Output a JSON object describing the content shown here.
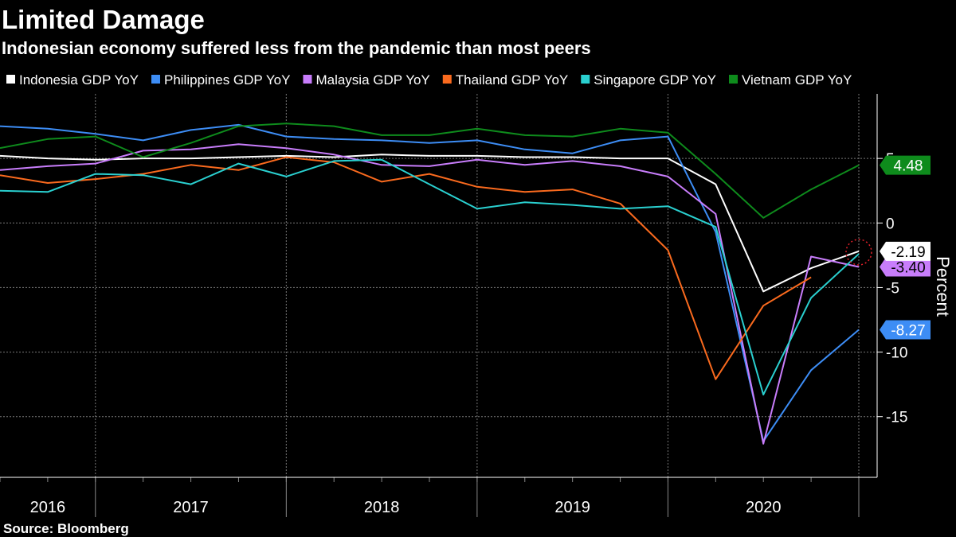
{
  "chart_data": {
    "type": "line",
    "title": "Limited Damage",
    "subtitle": "Indonesian economy suffered less from the pandemic than most peers",
    "y_label": "Percent",
    "source": "Source: Bloomberg",
    "year_labels": [
      "2016",
      "2017",
      "2018",
      "2019",
      "2020"
    ],
    "ylim": [
      -19.7,
      10
    ],
    "yticks": [
      -15,
      -10,
      -5,
      0,
      5
    ],
    "grid": true,
    "series": [
      {
        "name": "Indonesia GDP YoY",
        "color": "#ffffff",
        "values": [
          5.2,
          5.0,
          4.9,
          5.0,
          5.0,
          5.1,
          5.2,
          5.1,
          5.3,
          5.2,
          5.2,
          5.1,
          5.1,
          5.0,
          5.0,
          3.0,
          -5.3,
          -3.5,
          -2.19
        ],
        "value_labels": [
          null,
          null,
          null,
          null,
          null,
          null,
          null,
          null,
          null,
          null,
          null,
          null,
          null,
          null,
          null,
          null,
          null,
          null,
          "-2.19"
        ]
      },
      {
        "name": "Philippines GDP YoY",
        "color": "#3d8df5",
        "values": [
          7.5,
          7.3,
          6.9,
          6.4,
          7.2,
          7.6,
          6.7,
          6.5,
          6.4,
          6.2,
          6.4,
          5.7,
          5.4,
          6.4,
          6.7,
          -0.7,
          -16.9,
          -11.4,
          -8.27
        ],
        "value_labels": [
          null,
          null,
          null,
          null,
          null,
          null,
          null,
          null,
          null,
          null,
          null,
          null,
          null,
          null,
          null,
          null,
          null,
          null,
          "-8.27"
        ]
      },
      {
        "name": "Malaysia GDP YoY",
        "color": "#c87dfb",
        "values": [
          4.1,
          4.4,
          4.6,
          5.6,
          5.7,
          6.1,
          5.8,
          5.3,
          4.5,
          4.4,
          4.9,
          4.5,
          4.8,
          4.4,
          3.6,
          0.7,
          -17.1,
          -2.6,
          -3.4
        ],
        "value_labels": [
          null,
          null,
          null,
          null,
          null,
          null,
          null,
          null,
          null,
          null,
          null,
          null,
          null,
          null,
          null,
          null,
          null,
          null,
          "-3.40"
        ]
      },
      {
        "name": "Thailand GDP YoY",
        "color": "#fa6a1e",
        "values": [
          3.7,
          3.1,
          3.4,
          3.8,
          4.5,
          4.1,
          5.1,
          4.7,
          3.2,
          3.8,
          2.8,
          2.4,
          2.6,
          1.5,
          -2.1,
          -12.1,
          -6.4,
          -4.2
        ],
        "value_labels": null
      },
      {
        "name": "Singapore GDP YoY",
        "color": "#2ad0d0",
        "values": [
          2.5,
          2.4,
          3.8,
          3.7,
          3.0,
          4.6,
          3.6,
          4.8,
          4.9,
          3.0,
          1.1,
          1.6,
          1.4,
          1.1,
          1.3,
          -0.3,
          -13.3,
          -5.8,
          -2.4
        ],
        "value_labels": null
      },
      {
        "name": "Vietnam GDP YoY",
        "color": "#0e8b1c",
        "values": [
          5.8,
          6.5,
          6.7,
          5.1,
          6.2,
          7.5,
          7.7,
          7.5,
          6.8,
          6.8,
          7.3,
          6.8,
          6.7,
          7.3,
          7.0,
          3.8,
          0.4,
          2.6,
          4.48
        ],
        "value_labels": null
      }
    ]
  }
}
